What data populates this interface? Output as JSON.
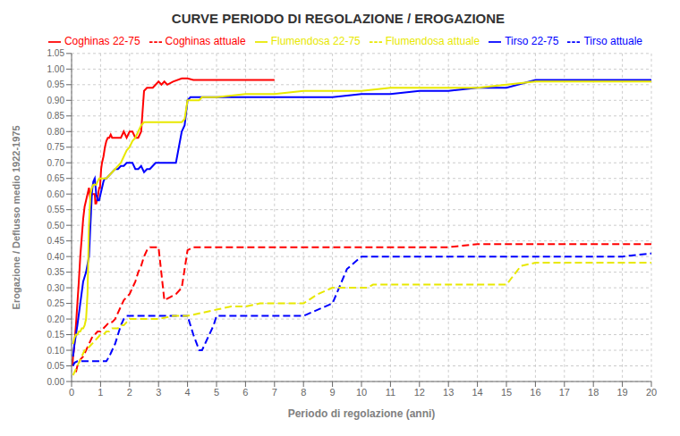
{
  "chart_data": {
    "type": "line",
    "title": "CURVE PERIODO DI REGOLAZIONE / EROGAZIONE",
    "xlabel": "Periodo di regolazione (anni)",
    "ylabel": "Erogazione / Deflusso medio 1922-1975",
    "xlim": [
      0,
      20
    ],
    "ylim": [
      0,
      1.05
    ],
    "xticks": [
      0,
      1,
      2,
      3,
      4,
      5,
      6,
      7,
      8,
      9,
      10,
      11,
      12,
      13,
      14,
      15,
      16,
      17,
      18,
      19,
      20
    ],
    "yticks": [
      {
        "value": 0,
        "label": "0.00"
      },
      0.05,
      {
        "value": 0.1,
        "label": "0.10"
      },
      0.15,
      {
        "value": 0.2,
        "label": "0.20"
      },
      0.25,
      {
        "value": 0.3,
        "label": "0.30"
      },
      0.35,
      {
        "value": 0.4,
        "label": "0.40"
      },
      0.45,
      {
        "value": 0.5,
        "label": "0.50"
      },
      0.55,
      {
        "value": 0.6,
        "label": "0.60"
      },
      0.65,
      {
        "value": 0.7,
        "label": "0.70"
      },
      0.75,
      {
        "value": 0.8,
        "label": "0.80"
      },
      0.85,
      {
        "value": 0.9,
        "label": "0.90"
      },
      0.95,
      {
        "value": 1,
        "label": "1.00"
      },
      1.05
    ],
    "grid": true,
    "legend": "upper right",
    "series": [
      {
        "name": "Coghinas 22-75",
        "color": "red",
        "line_style": "solid",
        "x": [
          0.03,
          0.05,
          0.08,
          0.15,
          0.2,
          0.25,
          0.3,
          0.35,
          0.4,
          0.45,
          0.5,
          0.55,
          0.6,
          0.65,
          0.7,
          0.75,
          0.8,
          0.82,
          0.85,
          0.9,
          0.92,
          0.95,
          0.98,
          1.0,
          1.02,
          1.05,
          1.1,
          1.15,
          1.2,
          1.25,
          1.3,
          1.35,
          1.4,
          1.5,
          1.6,
          1.7,
          1.8,
          1.9,
          2.0,
          2.1,
          2.2,
          2.3,
          2.4,
          2.5,
          2.6,
          2.7,
          2.8,
          2.9,
          3.0,
          3.1,
          3.2,
          3.3,
          3.5,
          3.8,
          4.0,
          4.2,
          4.5,
          5.0,
          5.5,
          6.0,
          7.0
        ],
        "values": [
          0.05,
          0.08,
          0.1,
          0.18,
          0.25,
          0.32,
          0.4,
          0.46,
          0.52,
          0.56,
          0.58,
          0.6,
          0.62,
          0.58,
          0.6,
          0.6,
          0.6,
          0.57,
          0.57,
          0.59,
          0.6,
          0.62,
          0.62,
          0.65,
          0.68,
          0.7,
          0.72,
          0.75,
          0.77,
          0.78,
          0.78,
          0.79,
          0.78,
          0.78,
          0.78,
          0.78,
          0.8,
          0.78,
          0.8,
          0.8,
          0.78,
          0.78,
          0.8,
          0.93,
          0.94,
          0.94,
          0.94,
          0.95,
          0.96,
          0.95,
          0.96,
          0.95,
          0.96,
          0.97,
          0.97,
          0.965,
          0.965,
          0.965,
          0.965,
          0.965,
          0.965
        ]
      },
      {
        "name": "Coghinas attuale",
        "color": "red",
        "line_style": "dashed",
        "x": [
          0.15,
          0.2,
          0.3,
          0.4,
          0.5,
          0.6,
          0.7,
          0.8,
          0.9,
          1.0,
          1.1,
          1.2,
          1.3,
          1.4,
          1.5,
          1.6,
          1.7,
          1.8,
          1.9,
          2.0,
          2.1,
          2.2,
          2.3,
          2.4,
          2.5,
          2.6,
          2.7,
          2.8,
          3.0,
          3.2,
          3.4,
          3.6,
          3.8,
          4.0,
          4.2,
          4.4,
          4.6,
          4.8,
          5.0,
          6.0,
          7.0,
          8.0,
          9.0,
          10.0,
          11.0,
          12.0,
          13.0,
          14.0,
          15.0,
          16.0,
          17.0,
          18.0,
          19.0,
          20.0
        ],
        "values": [
          0.03,
          0.05,
          0.07,
          0.08,
          0.1,
          0.12,
          0.14,
          0.15,
          0.16,
          0.16,
          0.17,
          0.18,
          0.19,
          0.19,
          0.2,
          0.22,
          0.24,
          0.26,
          0.27,
          0.28,
          0.3,
          0.32,
          0.35,
          0.37,
          0.4,
          0.42,
          0.43,
          0.43,
          0.43,
          0.26,
          0.27,
          0.28,
          0.3,
          0.42,
          0.43,
          0.43,
          0.43,
          0.43,
          0.43,
          0.43,
          0.43,
          0.43,
          0.43,
          0.43,
          0.43,
          0.43,
          0.43,
          0.44,
          0.44,
          0.44,
          0.44,
          0.44,
          0.44,
          0.44
        ]
      },
      {
        "name": "Tirso 22-75",
        "color": "blue",
        "line_style": "solid",
        "x": [
          0.05,
          0.1,
          0.15,
          0.2,
          0.3,
          0.4,
          0.5,
          0.6,
          0.65,
          0.7,
          0.72,
          0.75,
          0.8,
          0.85,
          0.9,
          0.95,
          1.0,
          1.05,
          1.1,
          1.15,
          1.2,
          1.3,
          1.4,
          1.5,
          1.6,
          1.7,
          1.8,
          1.9,
          2.0,
          2.1,
          2.2,
          2.3,
          2.4,
          2.5,
          2.6,
          2.7,
          2.8,
          2.9,
          3.0,
          3.1,
          3.2,
          3.3,
          3.4,
          3.5,
          3.6,
          3.7,
          3.8,
          3.9,
          4.0,
          4.1,
          4.2,
          4.3,
          4.5,
          5.0,
          5.5,
          6.0,
          7.0,
          8.0,
          9.0,
          10.0,
          11.0,
          12.0,
          13.0,
          14.0,
          15.0,
          16.0,
          17.0,
          18.0,
          19.0,
          20.0
        ],
        "values": [
          0.08,
          0.12,
          0.15,
          0.18,
          0.25,
          0.32,
          0.35,
          0.4,
          0.5,
          0.6,
          0.62,
          0.64,
          0.65,
          0.6,
          0.58,
          0.58,
          0.6,
          0.62,
          0.64,
          0.65,
          0.65,
          0.66,
          0.67,
          0.68,
          0.68,
          0.69,
          0.69,
          0.7,
          0.7,
          0.7,
          0.68,
          0.68,
          0.69,
          0.67,
          0.68,
          0.68,
          0.69,
          0.7,
          0.7,
          0.7,
          0.7,
          0.7,
          0.7,
          0.7,
          0.7,
          0.75,
          0.8,
          0.82,
          0.9,
          0.91,
          0.91,
          0.91,
          0.91,
          0.91,
          0.91,
          0.91,
          0.91,
          0.91,
          0.91,
          0.92,
          0.92,
          0.93,
          0.93,
          0.94,
          0.94,
          0.965,
          0.965,
          0.965,
          0.965,
          0.965
        ]
      },
      {
        "name": "Tirso attuale",
        "color": "blue",
        "line_style": "dashed",
        "x": [
          0.05,
          0.1,
          0.2,
          0.3,
          0.4,
          0.5,
          0.6,
          0.7,
          0.8,
          0.9,
          1.0,
          1.05,
          1.1,
          1.2,
          1.3,
          1.4,
          1.5,
          1.6,
          1.7,
          1.8,
          1.9,
          2.0,
          2.1,
          2.2,
          2.3,
          2.4,
          2.5,
          3.0,
          3.5,
          4.0,
          4.2,
          4.4,
          4.5,
          4.6,
          4.7,
          4.8,
          4.9,
          5.0,
          5.5,
          6.0,
          7.0,
          8.0,
          9.0,
          9.5,
          10.0,
          10.2,
          10.5,
          11.0,
          12.0,
          13.0,
          14.0,
          15.0,
          16.0,
          17.0,
          18.0,
          19.0,
          20.0
        ],
        "values": [
          0.05,
          0.06,
          0.065,
          0.065,
          0.065,
          0.065,
          0.065,
          0.065,
          0.065,
          0.065,
          0.065,
          0.065,
          0.065,
          0.065,
          0.08,
          0.1,
          0.12,
          0.15,
          0.18,
          0.2,
          0.21,
          0.21,
          0.21,
          0.21,
          0.21,
          0.21,
          0.21,
          0.21,
          0.21,
          0.21,
          0.15,
          0.1,
          0.1,
          0.12,
          0.14,
          0.16,
          0.18,
          0.21,
          0.21,
          0.21,
          0.21,
          0.21,
          0.25,
          0.36,
          0.4,
          0.4,
          0.4,
          0.4,
          0.4,
          0.4,
          0.4,
          0.4,
          0.4,
          0.4,
          0.4,
          0.4,
          0.41
        ]
      },
      {
        "name": "Flumendosa 22-75",
        "color": "#e8e800",
        "line_style": "solid",
        "x": [
          0.05,
          0.1,
          0.15,
          0.2,
          0.25,
          0.3,
          0.35,
          0.4,
          0.45,
          0.5,
          0.55,
          0.6,
          0.65,
          0.7,
          0.75,
          0.8,
          0.85,
          0.9,
          0.95,
          1.0,
          1.05,
          1.1,
          1.15,
          1.2,
          1.3,
          1.4,
          1.5,
          1.6,
          1.7,
          1.8,
          1.9,
          2.0,
          2.1,
          2.2,
          2.3,
          2.4,
          2.5,
          2.6,
          2.7,
          2.8,
          2.9,
          3.0,
          3.1,
          3.2,
          3.3,
          3.4,
          3.5,
          3.6,
          3.7,
          3.8,
          3.9,
          4.0,
          4.1,
          4.2,
          4.3,
          4.4,
          4.5,
          5.0,
          6.0,
          7.0,
          8.0,
          9.0,
          10.0,
          11.0,
          12.0,
          13.0,
          14.0,
          15.0,
          16.0,
          17.0,
          18.0,
          19.0,
          20.0
        ],
        "values": [
          0.12,
          0.14,
          0.15,
          0.15,
          0.16,
          0.16,
          0.17,
          0.17,
          0.18,
          0.2,
          0.28,
          0.5,
          0.6,
          0.62,
          0.63,
          0.63,
          0.63,
          0.64,
          0.65,
          0.65,
          0.65,
          0.65,
          0.65,
          0.65,
          0.66,
          0.67,
          0.68,
          0.69,
          0.7,
          0.72,
          0.74,
          0.75,
          0.77,
          0.78,
          0.8,
          0.82,
          0.83,
          0.83,
          0.83,
          0.83,
          0.83,
          0.83,
          0.83,
          0.83,
          0.83,
          0.83,
          0.83,
          0.83,
          0.83,
          0.83,
          0.84,
          0.9,
          0.9,
          0.9,
          0.9,
          0.9,
          0.91,
          0.91,
          0.92,
          0.92,
          0.93,
          0.93,
          0.93,
          0.94,
          0.94,
          0.94,
          0.94,
          0.95,
          0.96,
          0.96,
          0.96,
          0.96,
          0.96
        ]
      },
      {
        "name": "Flumendosa attuale",
        "color": "#e8e800",
        "line_style": "dashed",
        "x": [
          0.05,
          0.1,
          0.15,
          0.2,
          0.25,
          0.3,
          0.35,
          0.4,
          0.45,
          0.5,
          0.6,
          0.7,
          0.8,
          0.9,
          1.0,
          1.1,
          1.2,
          1.3,
          1.4,
          1.5,
          1.6,
          1.7,
          1.8,
          1.9,
          2.0,
          2.2,
          2.4,
          2.6,
          2.8,
          3.0,
          3.5,
          4.0,
          4.5,
          5.0,
          5.5,
          6.0,
          6.5,
          7.0,
          7.5,
          8.0,
          8.5,
          9.0,
          9.5,
          10.0,
          10.2,
          10.4,
          10.6,
          11.0,
          12.0,
          13.0,
          14.0,
          15.0,
          15.5,
          16.0,
          17.0,
          18.0,
          19.0,
          20.0
        ],
        "values": [
          0.02,
          0.03,
          0.04,
          0.05,
          0.06,
          0.07,
          0.08,
          0.09,
          0.1,
          0.1,
          0.11,
          0.12,
          0.13,
          0.14,
          0.15,
          0.15,
          0.16,
          0.16,
          0.17,
          0.17,
          0.17,
          0.18,
          0.18,
          0.19,
          0.2,
          0.2,
          0.2,
          0.2,
          0.2,
          0.2,
          0.21,
          0.21,
          0.22,
          0.23,
          0.24,
          0.24,
          0.25,
          0.25,
          0.25,
          0.25,
          0.28,
          0.3,
          0.3,
          0.3,
          0.3,
          0.31,
          0.31,
          0.31,
          0.31,
          0.31,
          0.31,
          0.31,
          0.37,
          0.38,
          0.38,
          0.38,
          0.38,
          0.38
        ]
      }
    ]
  }
}
